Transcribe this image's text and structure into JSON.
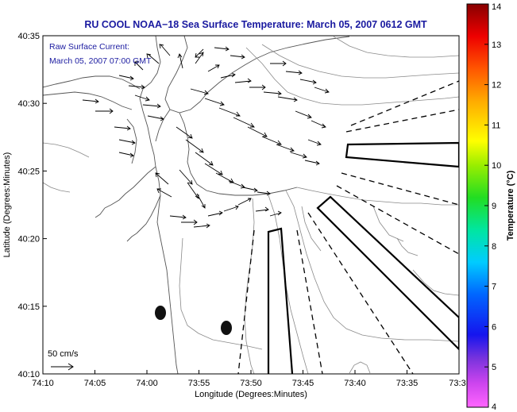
{
  "title": "RU COOL  NOAA−18  Sea Surface Temperature:  March 05, 2007 0612 GMT",
  "legend": {
    "line1": "Raw Surface Current:",
    "line2": "March 05, 2007 07:00 GMT"
  },
  "scale_label": "50 cm/s",
  "axes": {
    "xlabel": "Longitude (Degrees:Minutes)",
    "ylabel": "Latitude (Degrees:Minutes)",
    "xticks": [
      "74:10",
      "74:05",
      "74:00",
      "73:55",
      "73:50",
      "73:45",
      "73:40",
      "73:35",
      "73:3"
    ],
    "yticks": [
      "40:35",
      "40:30",
      "40:25",
      "40:20",
      "40:15",
      "40:10"
    ]
  },
  "colorbar": {
    "label": "Temperature (°C)",
    "ticks": [
      "14",
      "13",
      "12",
      "11",
      "10",
      "9",
      "8",
      "7",
      "6",
      "5",
      "4"
    ],
    "min": 4,
    "max": 14
  }
}
